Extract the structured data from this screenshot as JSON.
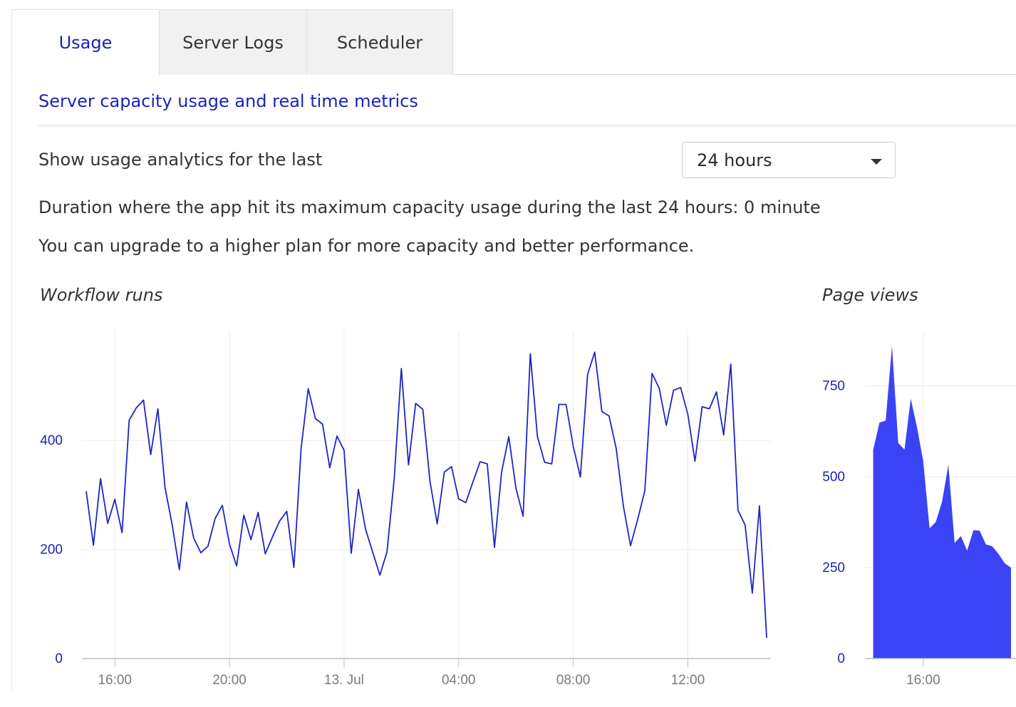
{
  "tabs": [
    {
      "label": "Usage",
      "active": true
    },
    {
      "label": "Server Logs",
      "active": false
    },
    {
      "label": "Scheduler",
      "active": false
    }
  ],
  "subtitle": "Server capacity usage and real time metrics",
  "range": {
    "label": "Show usage analytics for the last",
    "selected": "24 hours"
  },
  "info": {
    "duration": "Duration where the app hit its maximum capacity usage during the last 24 hours: 0 minute",
    "upgrade": "You can upgrade to a higher plan for more capacity and better performance."
  },
  "colors": {
    "accent": "#1a23b8",
    "line": "#1e24c8",
    "area": "#3a44f5"
  },
  "chart_data": [
    {
      "type": "line",
      "title": "Workflow runs",
      "x_unit": "hours since 15:00 (12 Jul)",
      "xticks": [
        "16:00",
        "20:00",
        "13. Jul",
        "04:00",
        "08:00",
        "12:00"
      ],
      "xtick_hours": [
        1,
        5,
        9,
        13,
        17,
        21
      ],
      "xlim": [
        -0.15,
        23.9
      ],
      "ylim": [
        0,
        600
      ],
      "yticks": [
        0,
        200,
        400
      ],
      "x": [
        0,
        0.25,
        0.5,
        0.75,
        1,
        1.25,
        1.5,
        1.75,
        2,
        2.25,
        2.5,
        2.75,
        3,
        3.25,
        3.5,
        3.75,
        4,
        4.25,
        4.5,
        4.75,
        5,
        5.25,
        5.5,
        5.75,
        6,
        6.25,
        6.5,
        6.75,
        7,
        7.25,
        7.5,
        7.75,
        8,
        8.25,
        8.5,
        8.75,
        9,
        9.25,
        9.5,
        9.75,
        10,
        10.25,
        10.5,
        10.75,
        11,
        11.25,
        11.5,
        11.75,
        12,
        12.25,
        12.5,
        12.75,
        13,
        13.25,
        13.5,
        13.75,
        14,
        14.25,
        14.5,
        14.75,
        15,
        15.25,
        15.5,
        15.75,
        16,
        16.25,
        16.5,
        16.75,
        17,
        17.25,
        17.5,
        17.75,
        18,
        18.25,
        18.5,
        18.75,
        19,
        19.25,
        19.5,
        19.75,
        20,
        20.25,
        20.5,
        20.75,
        21,
        21.25,
        21.5,
        21.75,
        22,
        22.25,
        22.5,
        22.75,
        23,
        23.25,
        23.5,
        23.75
      ],
      "series": [
        {
          "values": [
            307,
            208,
            330,
            248,
            292,
            231,
            437,
            460,
            474,
            374,
            458,
            314,
            245,
            163,
            287,
            221,
            194,
            206,
            257,
            281,
            210,
            170,
            263,
            218,
            268,
            192,
            223,
            252,
            270,
            167,
            385,
            495,
            440,
            430,
            350,
            408,
            382,
            193,
            310,
            237,
            195,
            153,
            196,
            330,
            532,
            355,
            468,
            457,
            325,
            247,
            342,
            352,
            293,
            286,
            324,
            361,
            357,
            204,
            342,
            407,
            313,
            261,
            559,
            407,
            360,
            357,
            466,
            466,
            389,
            333,
            521,
            562,
            453,
            445,
            385,
            280,
            207,
            255,
            308,
            523,
            496,
            428,
            492,
            497,
            448,
            362,
            462,
            458,
            489,
            410,
            540,
            272,
            245,
            120,
            280,
            38
          ]
        }
      ]
    },
    {
      "type": "area",
      "title": "Page views",
      "xticks": [
        "16:00"
      ],
      "xtick_hours": [
        1
      ],
      "xlim": [
        -0.15,
        2.85
      ],
      "ylim": [
        0,
        900
      ],
      "yticks": [
        0,
        250,
        500,
        750
      ],
      "x": [
        0,
        0.125,
        0.25,
        0.375,
        0.5,
        0.625,
        0.75,
        0.875,
        1,
        1.125,
        1.25,
        1.375,
        1.5,
        1.625,
        1.75,
        1.875,
        2,
        2.125,
        2.25,
        2.375,
        2.5,
        2.625,
        2.75
      ],
      "series": [
        {
          "values": [
            574,
            649,
            655,
            860,
            593,
            575,
            715,
            636,
            542,
            358,
            376,
            432,
            533,
            318,
            337,
            297,
            353,
            352,
            314,
            309,
            288,
            262,
            250
          ]
        }
      ]
    }
  ]
}
